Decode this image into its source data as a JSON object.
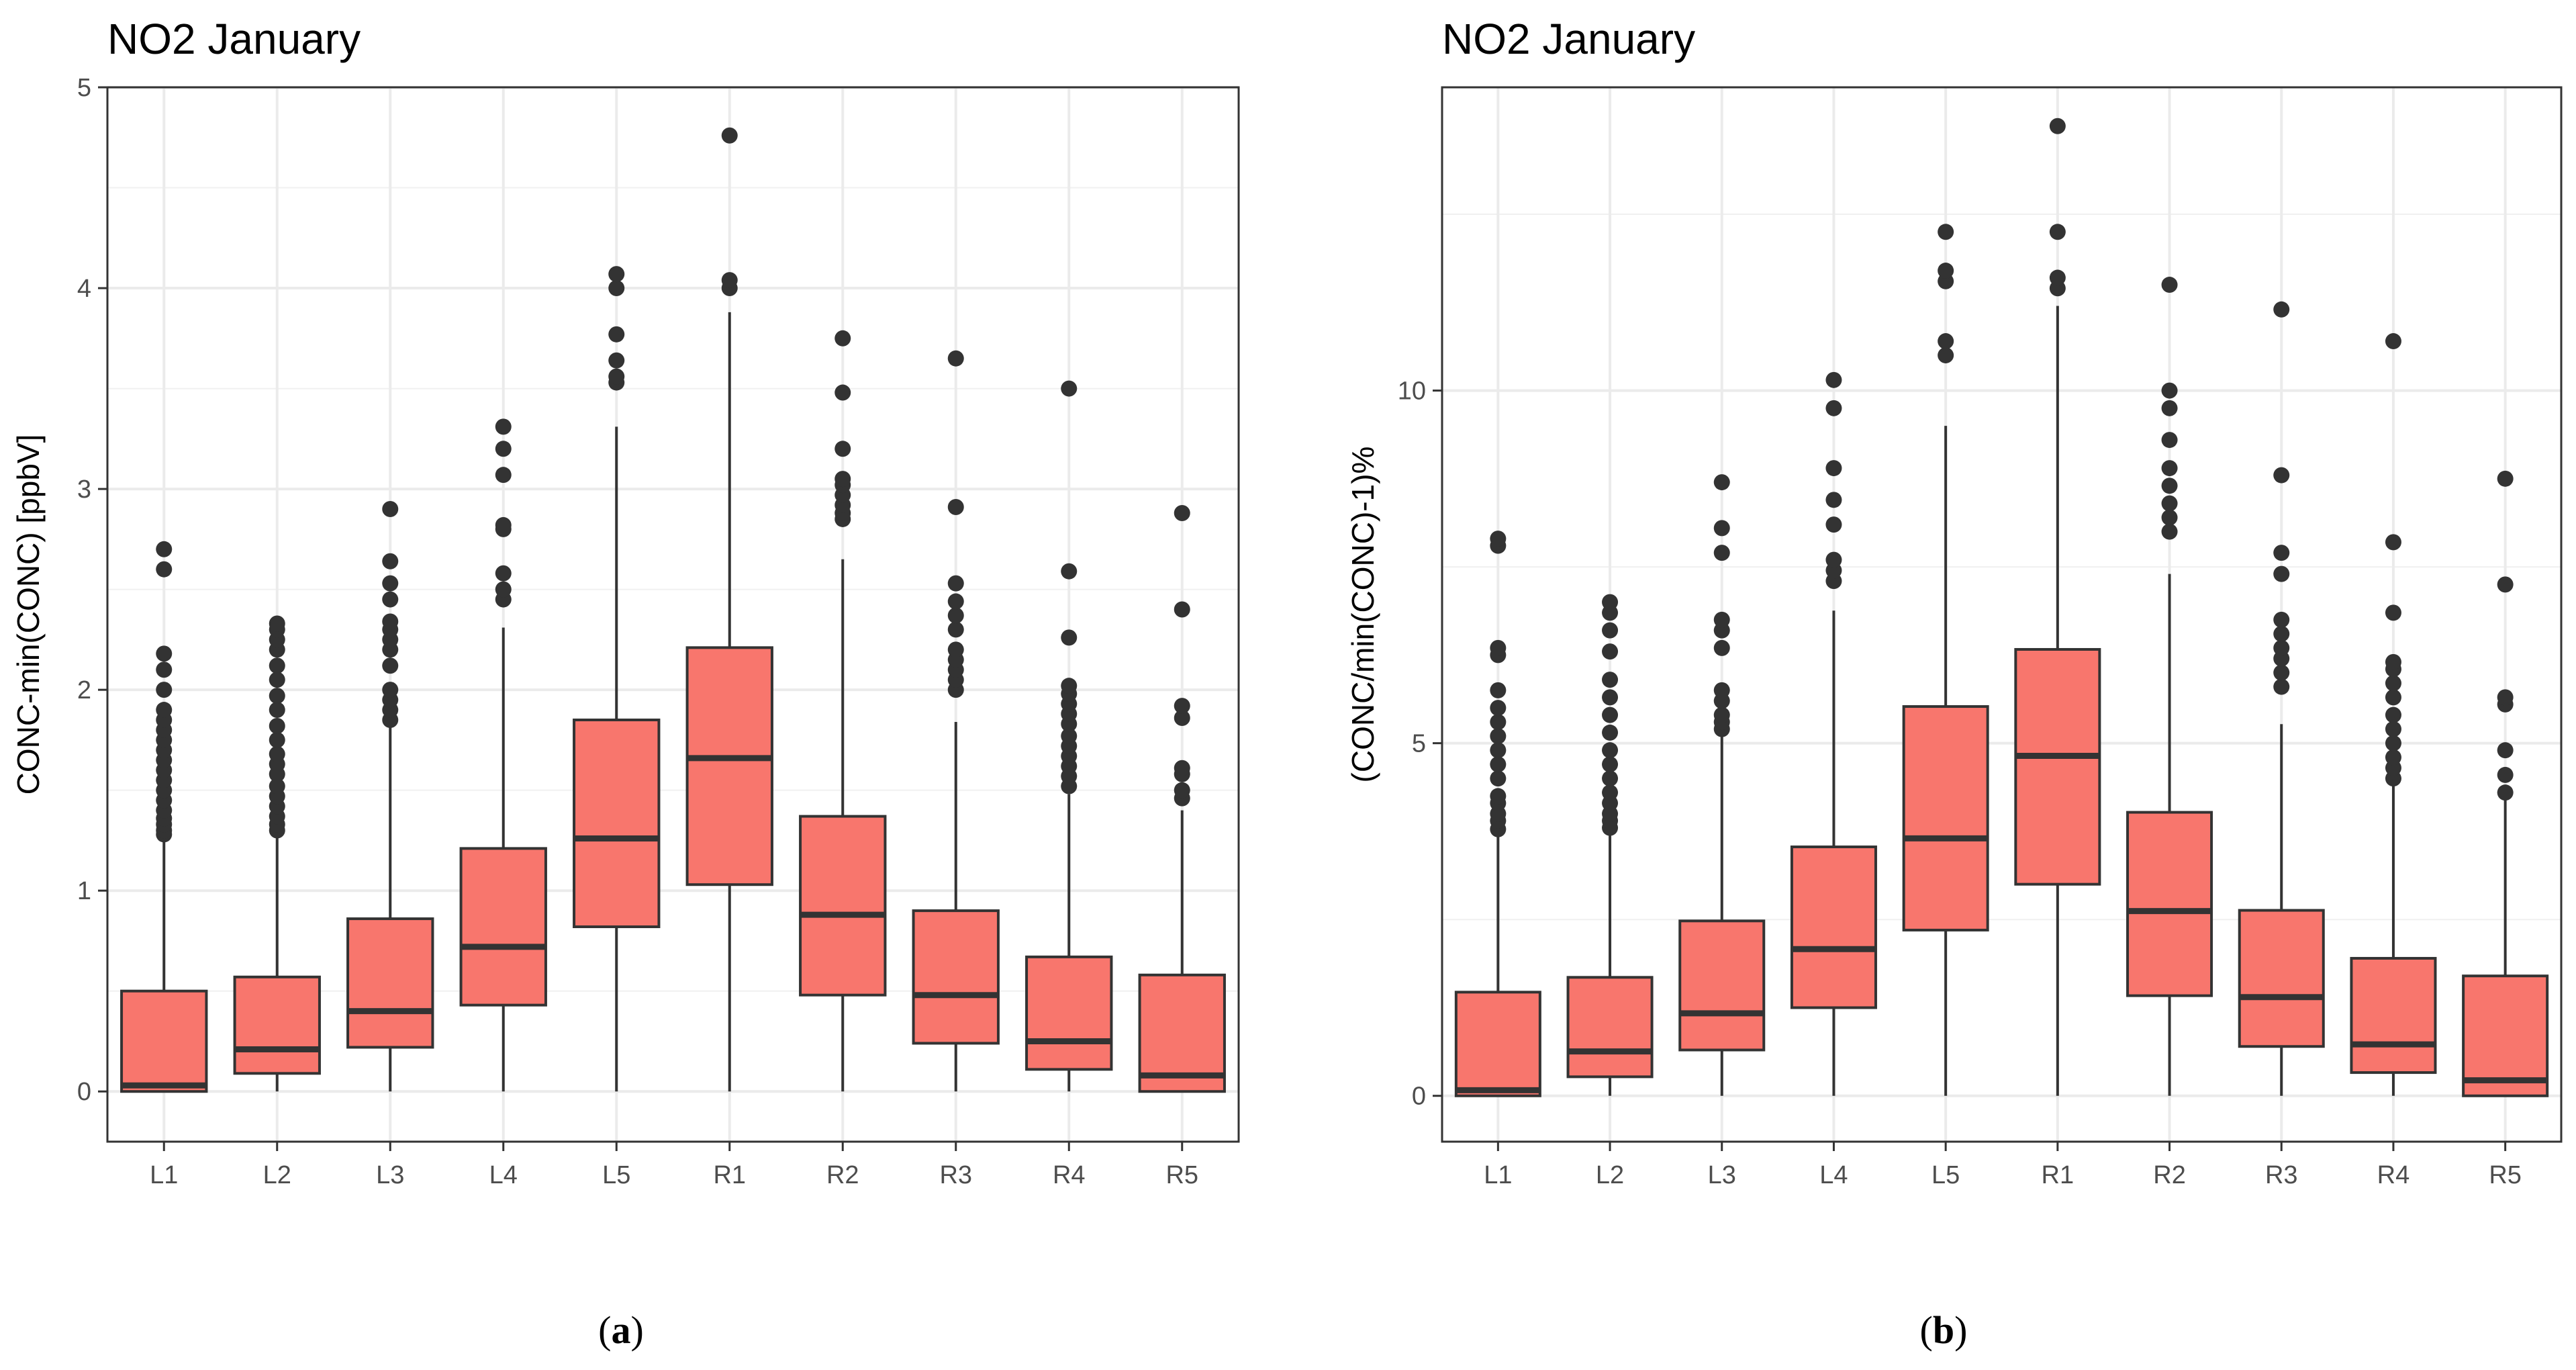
{
  "chart_data": [
    {
      "type": "boxplot",
      "panel": "(a)",
      "panel_letter": "a",
      "title": "NO2 January",
      "xlabel": "",
      "ylabel": "CONC-min(CONC) [ppbV]",
      "ylim": [
        -0.25,
        5.0
      ],
      "yticks": [
        0,
        1,
        2,
        3,
        4,
        5
      ],
      "grid": true,
      "fill_color": "#F8766D",
      "categories": [
        "L1",
        "L2",
        "L3",
        "L4",
        "L5",
        "R1",
        "R2",
        "R3",
        "R4",
        "R5"
      ],
      "boxes": [
        {
          "low": 0,
          "q1": 0,
          "median": 0.03,
          "q3": 0.5,
          "high": 1.25,
          "outliers": [
            1.28,
            1.3,
            1.33,
            1.36,
            1.4,
            1.45,
            1.5,
            1.55,
            1.6,
            1.65,
            1.7,
            1.75,
            1.8,
            1.85,
            1.9,
            2.0,
            2.1,
            2.18,
            2.6,
            2.7
          ]
        },
        {
          "low": 0,
          "q1": 0.09,
          "median": 0.21,
          "q3": 0.57,
          "high": 1.28,
          "outliers": [
            1.3,
            1.33,
            1.37,
            1.42,
            1.47,
            1.52,
            1.58,
            1.63,
            1.68,
            1.75,
            1.82,
            1.9,
            1.97,
            2.05,
            2.12,
            2.2,
            2.25,
            2.3,
            2.33
          ]
        },
        {
          "low": 0,
          "q1": 0.22,
          "median": 0.4,
          "q3": 0.86,
          "high": 1.82,
          "outliers": [
            1.85,
            1.9,
            1.95,
            2.0,
            2.12,
            2.2,
            2.25,
            2.3,
            2.34,
            2.45,
            2.53,
            2.64,
            2.9
          ]
        },
        {
          "low": 0,
          "q1": 0.43,
          "median": 0.72,
          "q3": 1.21,
          "high": 2.31,
          "outliers": [
            2.45,
            2.5,
            2.58,
            2.8,
            2.82,
            3.07,
            3.2,
            3.31
          ]
        },
        {
          "low": 0,
          "q1": 0.82,
          "median": 1.26,
          "q3": 1.85,
          "high": 3.31,
          "outliers": [
            3.53,
            3.56,
            3.64,
            3.77,
            4.0,
            4.07
          ]
        },
        {
          "low": 0,
          "q1": 1.03,
          "median": 1.66,
          "q3": 2.21,
          "high": 3.88,
          "outliers": [
            4.0,
            4.04,
            4.76
          ]
        },
        {
          "low": 0,
          "q1": 0.48,
          "median": 0.88,
          "q3": 1.37,
          "high": 2.65,
          "outliers": [
            2.85,
            2.88,
            2.92,
            2.97,
            3.02,
            3.05,
            3.2,
            3.48,
            3.75
          ]
        },
        {
          "low": 0,
          "q1": 0.24,
          "median": 0.48,
          "q3": 0.9,
          "high": 1.84,
          "outliers": [
            2.0,
            2.05,
            2.1,
            2.15,
            2.2,
            2.3,
            2.37,
            2.44,
            2.53,
            2.91,
            3.65
          ]
        },
        {
          "low": 0,
          "q1": 0.11,
          "median": 0.25,
          "q3": 0.67,
          "high": 1.48,
          "outliers": [
            1.52,
            1.57,
            1.62,
            1.67,
            1.72,
            1.77,
            1.83,
            1.88,
            1.93,
            1.98,
            2.02,
            2.26,
            2.59,
            3.5
          ]
        },
        {
          "low": 0,
          "q1": 0,
          "median": 0.08,
          "q3": 0.58,
          "high": 1.4,
          "outliers": [
            1.46,
            1.5,
            1.58,
            1.61,
            1.86,
            1.92,
            2.4,
            2.88
          ]
        }
      ]
    },
    {
      "type": "boxplot",
      "panel": "(b)",
      "panel_letter": "b",
      "title": "NO2 January",
      "xlabel": "",
      "ylabel": "(CONC/min(CONC)-1)%",
      "ylim": [
        -0.65,
        14.3
      ],
      "yticks": [
        0,
        5,
        10
      ],
      "grid": true,
      "fill_color": "#F8766D",
      "categories": [
        "L1",
        "L2",
        "L3",
        "L4",
        "L5",
        "R1",
        "R2",
        "R3",
        "R4",
        "R5"
      ],
      "boxes": [
        {
          "low": 0,
          "q1": 0,
          "median": 0.08,
          "q3": 1.47,
          "high": 3.7,
          "outliers": [
            3.78,
            3.9,
            4.0,
            4.15,
            4.25,
            4.5,
            4.7,
            4.9,
            5.1,
            5.3,
            5.5,
            5.75,
            6.25,
            6.35,
            7.8,
            7.9
          ]
        },
        {
          "low": 0,
          "q1": 0.27,
          "median": 0.63,
          "q3": 1.68,
          "high": 3.72,
          "outliers": [
            3.8,
            3.9,
            4.0,
            4.15,
            4.3,
            4.5,
            4.7,
            4.9,
            5.15,
            5.4,
            5.65,
            5.9,
            6.3,
            6.6,
            6.85,
            7.0
          ]
        },
        {
          "low": 0,
          "q1": 0.65,
          "median": 1.17,
          "q3": 2.48,
          "high": 5.1,
          "outliers": [
            5.2,
            5.3,
            5.4,
            5.6,
            5.75,
            6.35,
            6.6,
            6.75,
            7.7,
            8.05,
            8.7
          ]
        },
        {
          "low": 0,
          "q1": 1.25,
          "median": 2.08,
          "q3": 3.53,
          "high": 6.88,
          "outliers": [
            7.3,
            7.45,
            7.6,
            8.1,
            8.45,
            8.9,
            9.75,
            10.15
          ]
        },
        {
          "low": 0,
          "q1": 2.35,
          "median": 3.65,
          "q3": 5.52,
          "high": 9.5,
          "outliers": [
            10.5,
            10.7,
            11.55,
            11.7,
            12.25
          ]
        },
        {
          "low": 0,
          "q1": 3.0,
          "median": 4.82,
          "q3": 6.33,
          "high": 11.2,
          "outliers": [
            11.45,
            11.6,
            12.25,
            13.75
          ]
        },
        {
          "low": 0,
          "q1": 1.42,
          "median": 2.62,
          "q3": 4.02,
          "high": 7.4,
          "outliers": [
            8.0,
            8.2,
            8.4,
            8.65,
            8.9,
            9.3,
            9.75,
            10.0,
            11.5
          ]
        },
        {
          "low": 0,
          "q1": 0.7,
          "median": 1.4,
          "q3": 2.63,
          "high": 5.27,
          "outliers": [
            5.8,
            6.0,
            6.2,
            6.35,
            6.55,
            6.75,
            7.4,
            7.7,
            8.8,
            11.15
          ]
        },
        {
          "low": 0,
          "q1": 0.33,
          "median": 0.73,
          "q3": 1.95,
          "high": 4.4,
          "outliers": [
            4.5,
            4.65,
            4.8,
            5.0,
            5.2,
            5.4,
            5.65,
            5.85,
            6.05,
            6.15,
            6.85,
            7.85,
            10.7
          ]
        },
        {
          "low": 0,
          "q1": 0,
          "median": 0.22,
          "q3": 1.7,
          "high": 4.2,
          "outliers": [
            4.3,
            4.55,
            4.9,
            5.55,
            5.65,
            7.25,
            8.75
          ]
        }
      ]
    }
  ]
}
